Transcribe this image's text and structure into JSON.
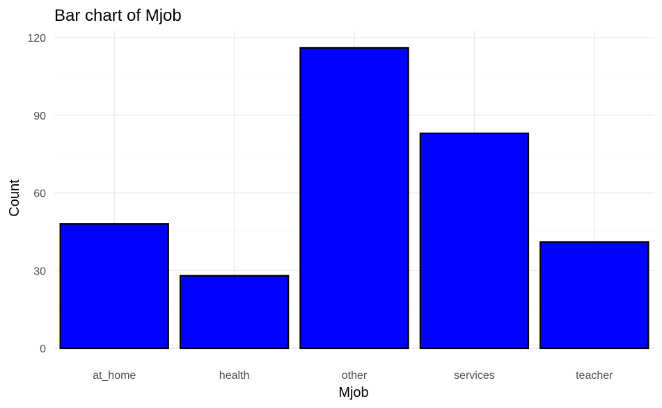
{
  "chart_data": {
    "type": "bar",
    "title": "Bar chart of Mjob",
    "xlabel": "Mjob",
    "ylabel": "Count",
    "categories": [
      "at_home",
      "health",
      "other",
      "services",
      "teacher"
    ],
    "values": [
      48,
      28,
      116,
      83,
      41
    ],
    "ylim": [
      0,
      120
    ],
    "yticks": [
      0,
      30,
      60,
      90,
      120
    ],
    "grid": true,
    "legend": "none",
    "bar_fill": "#0000ff",
    "bar_outline": "#000000"
  }
}
